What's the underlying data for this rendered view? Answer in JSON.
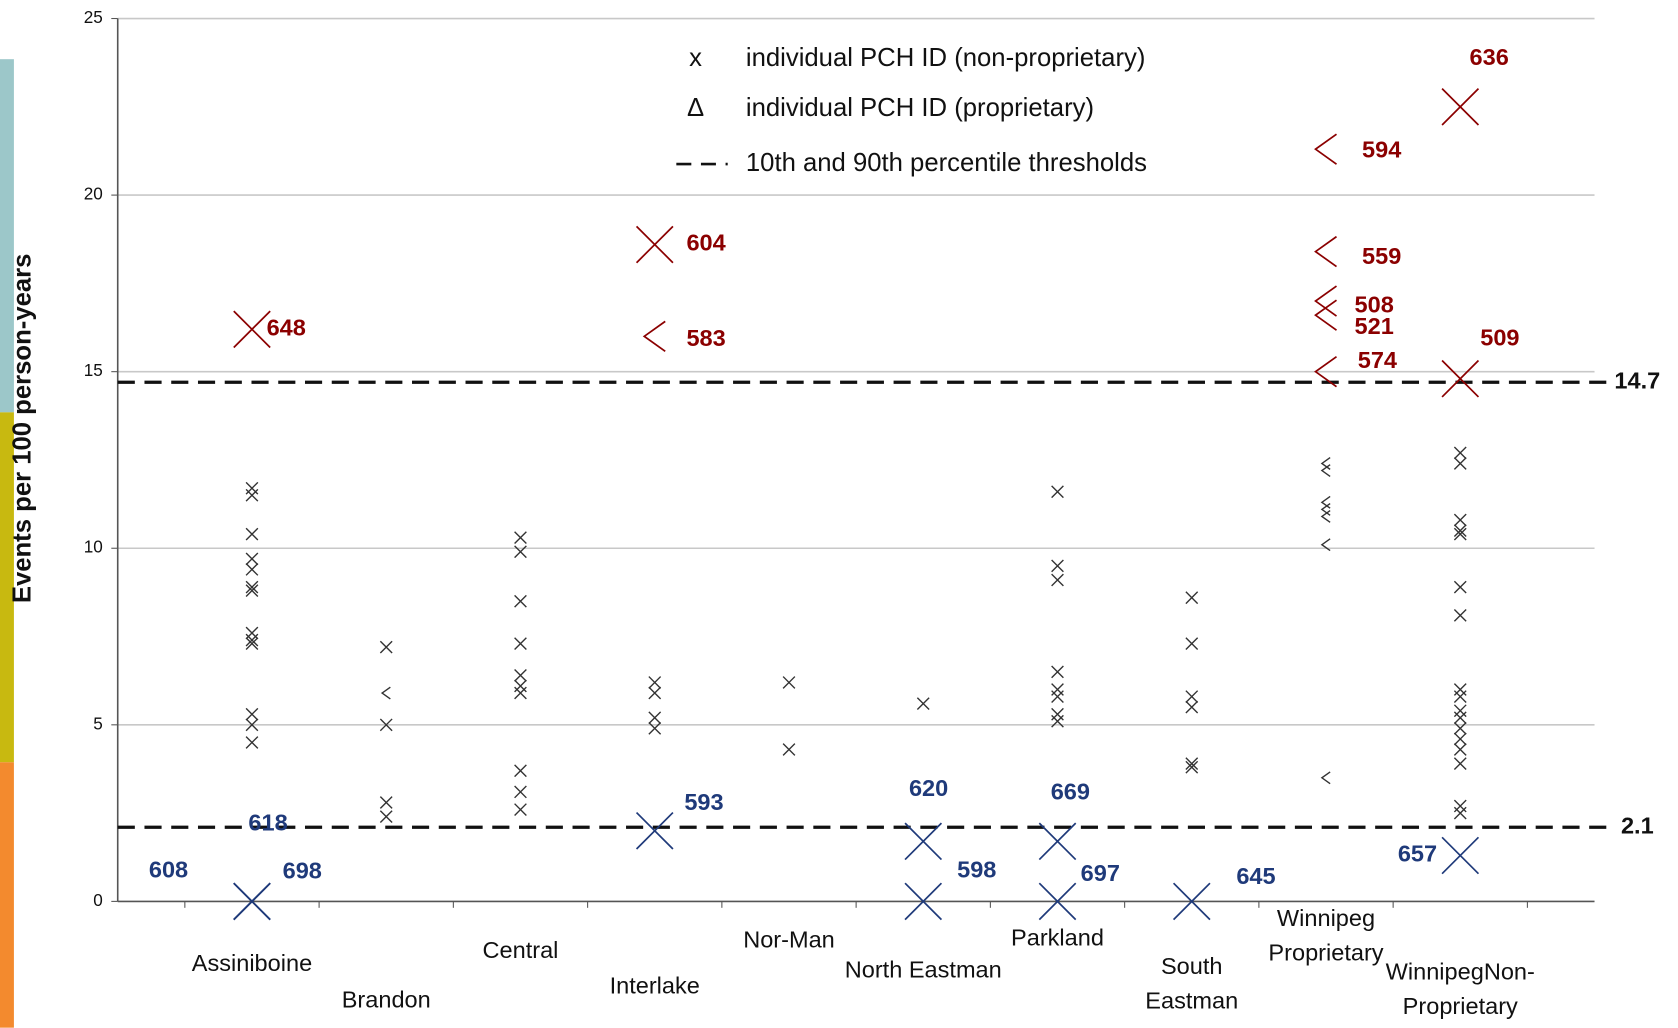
{
  "chart_data": {
    "type": "strip",
    "y_label": "Events per 100 person-years",
    "categories": [
      "Assiniboine",
      "Brandon",
      "Central",
      "Interlake",
      "Nor-Man",
      "North Eastman",
      "Parkland",
      "South Eastman",
      "Winnipeg Proprietary",
      "WinnipegNon-Proprietary"
    ],
    "ylim": [
      0,
      25
    ],
    "yticks": [
      0,
      5,
      10,
      15,
      20,
      25
    ],
    "grid": true,
    "series": [
      {
        "name": "individual PCH ID (non-proprietary)",
        "symbol": "x",
        "marker": "cross",
        "color": "#333333",
        "x": [
          "Assiniboine",
          "Assiniboine",
          "Assiniboine",
          "Assiniboine",
          "Assiniboine",
          "Assiniboine",
          "Assiniboine",
          "Assiniboine",
          "Assiniboine",
          "Assiniboine",
          "Assiniboine",
          "Assiniboine",
          "Assiniboine",
          "Brandon",
          "Brandon",
          "Brandon",
          "Brandon",
          "Central",
          "Central",
          "Central",
          "Central",
          "Central",
          "Central",
          "Central",
          "Central",
          "Central",
          "Central",
          "Interlake",
          "Interlake",
          "Interlake",
          "Interlake",
          "Nor-Man",
          "Nor-Man",
          "North Eastman",
          "Parkland",
          "Parkland",
          "Parkland",
          "Parkland",
          "Parkland",
          "Parkland",
          "Parkland",
          "Parkland",
          "South Eastman",
          "South Eastman",
          "South Eastman",
          "South Eastman",
          "South Eastman",
          "South Eastman",
          "WinnipegNon-Proprietary",
          "WinnipegNon-Proprietary",
          "WinnipegNon-Proprietary",
          "WinnipegNon-Proprietary",
          "WinnipegNon-Proprietary",
          "WinnipegNon-Proprietary",
          "WinnipegNon-Proprietary",
          "WinnipegNon-Proprietary",
          "WinnipegNon-Proprietary",
          "WinnipegNon-Proprietary",
          "WinnipegNon-Proprietary",
          "WinnipegNon-Proprietary",
          "WinnipegNon-Proprietary",
          "WinnipegNon-Proprietary",
          "WinnipegNon-Proprietary",
          "WinnipegNon-Proprietary",
          "WinnipegNon-Proprietary"
        ],
        "values": [
          11.7,
          11.5,
          10.4,
          9.7,
          9.4,
          8.9,
          8.8,
          7.6,
          7.4,
          7.3,
          5.3,
          5.0,
          4.5,
          7.2,
          5.0,
          2.8,
          2.4,
          10.3,
          9.9,
          8.5,
          7.3,
          6.4,
          6.1,
          5.9,
          3.7,
          3.1,
          2.6,
          6.2,
          5.9,
          5.2,
          4.9,
          6.2,
          4.3,
          5.6,
          11.6,
          9.5,
          9.1,
          6.5,
          6.0,
          5.8,
          5.3,
          5.1,
          8.6,
          7.3,
          5.8,
          5.5,
          3.9,
          3.8,
          12.7,
          12.4,
          10.8,
          10.5,
          10.4,
          8.9,
          8.1,
          6.0,
          5.8,
          5.4,
          5.2,
          4.9,
          4.6,
          4.3,
          3.9,
          2.7,
          2.5
        ]
      },
      {
        "name": "individual PCH ID (proprietary)",
        "symbol": "Δ",
        "marker": "caret",
        "color": "#333333",
        "x": [
          "Brandon",
          "Winnipeg Proprietary",
          "Winnipeg Proprietary",
          "Winnipeg Proprietary",
          "Winnipeg Proprietary",
          "Winnipeg Proprietary",
          "Winnipeg Proprietary",
          "Winnipeg Proprietary"
        ],
        "values": [
          5.9,
          12.4,
          12.2,
          11.3,
          11.1,
          10.9,
          10.1,
          3.5
        ]
      }
    ],
    "outliers": {
      "high_color": "#8b0000",
      "low_color": "#1f3a7a",
      "x": [
        "Assiniboine",
        "Assiniboine",
        "Assiniboine",
        "Assiniboine",
        "Interlake",
        "Interlake",
        "Interlake",
        "North Eastman",
        "North Eastman",
        "Parkland",
        "Parkland",
        "South Eastman",
        "Winnipeg Proprietary",
        "Winnipeg Proprietary",
        "Winnipeg Proprietary",
        "Winnipeg Proprietary",
        "Winnipeg Proprietary",
        "WinnipegNon-Proprietary",
        "WinnipegNon-Proprietary",
        "WinnipegNon-Proprietary"
      ],
      "values": [
        16.2,
        0,
        0,
        0,
        18.6,
        16.0,
        2.0,
        1.7,
        0,
        1.7,
        0,
        0,
        21.3,
        18.4,
        17.0,
        16.6,
        15.0,
        22.5,
        14.8,
        1.3
      ],
      "labels": [
        "648",
        "608",
        "618",
        "698",
        "604",
        "583",
        "593",
        "620",
        "598",
        "669",
        "697",
        "645",
        "594",
        "559",
        "508",
        "521",
        "574",
        "636",
        "509",
        "657"
      ],
      "proprietary": [
        false,
        false,
        false,
        false,
        false,
        true,
        false,
        false,
        false,
        false,
        false,
        false,
        true,
        true,
        true,
        true,
        true,
        false,
        false,
        false
      ]
    },
    "thresholds": {
      "name": "10th and 90th percentile thresholds",
      "values": [
        14.7,
        2.1
      ]
    }
  }
}
